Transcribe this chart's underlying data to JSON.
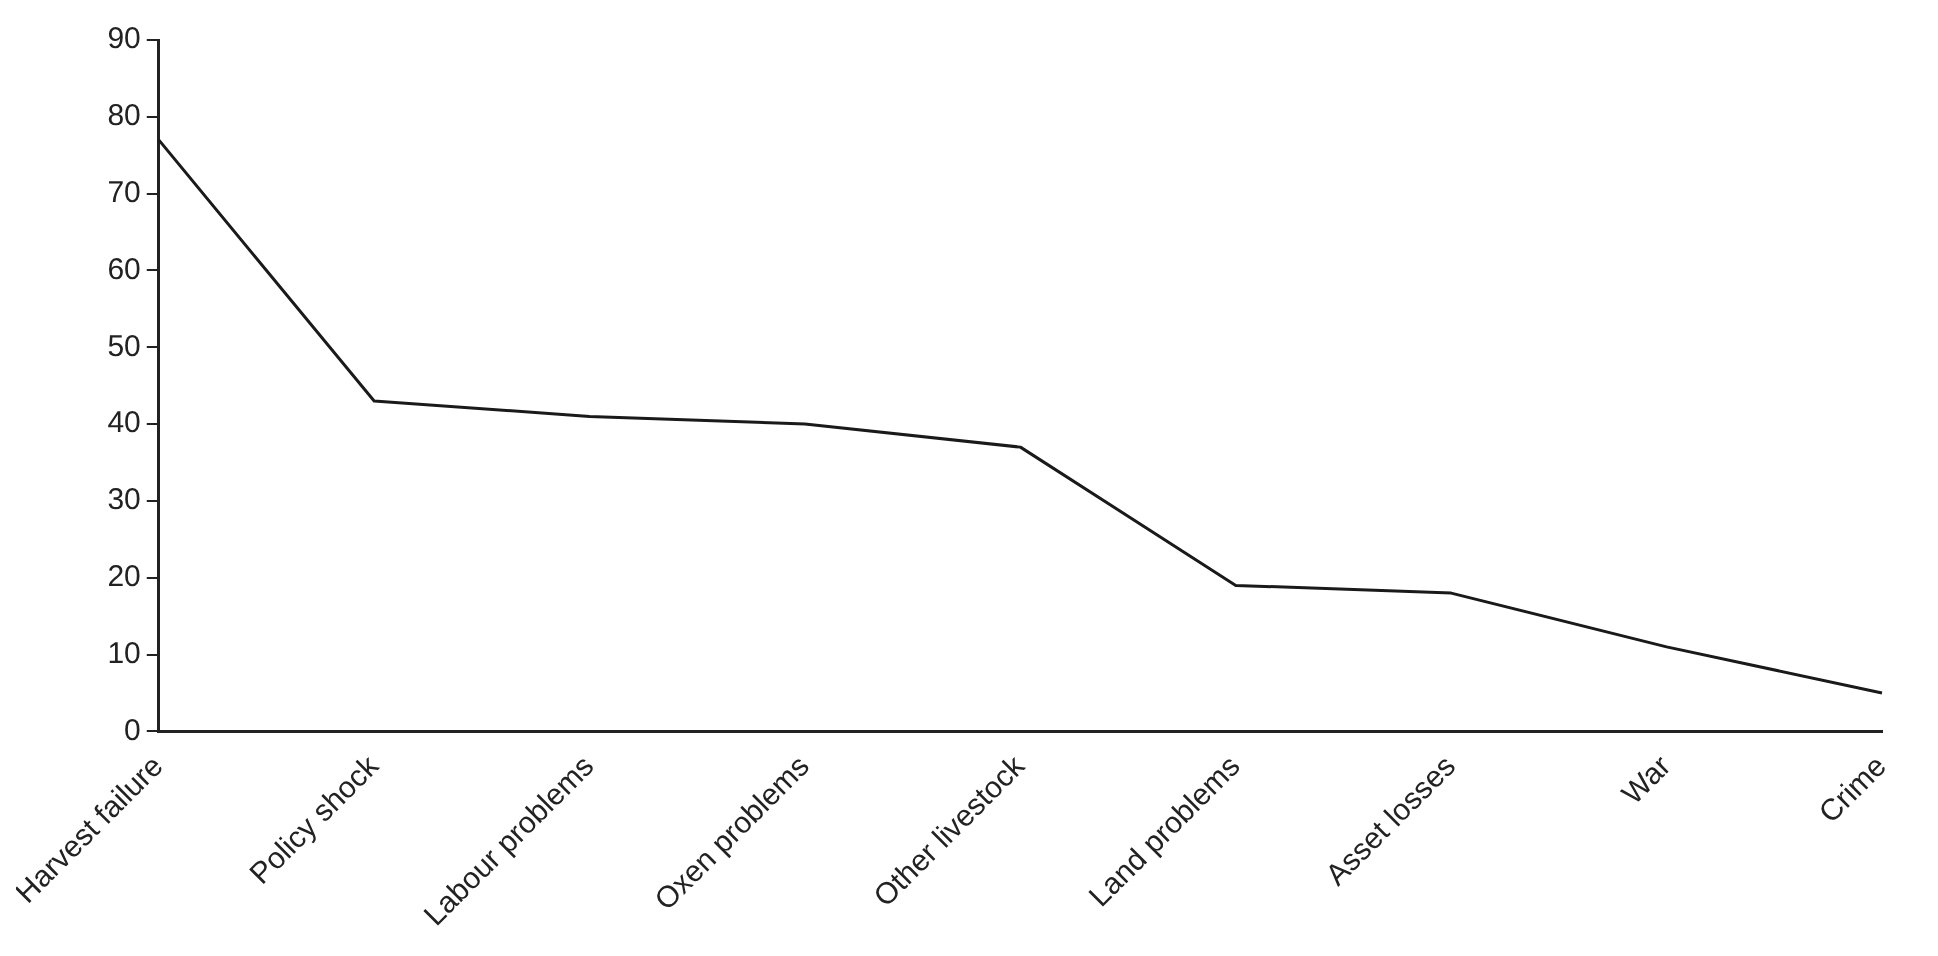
{
  "chart_data": {
    "type": "line",
    "categories": [
      "Harvest failure",
      "Policy shock",
      "Labour problems",
      "Oxen problems",
      "Other livestock",
      "Land problems",
      "Asset losses",
      "War",
      "Crime"
    ],
    "series": [
      {
        "color": "#1a1a1a",
        "values": [
          77,
          43,
          41,
          40,
          37,
          19,
          18,
          11,
          5
        ]
      }
    ],
    "ylim": [
      0,
      90
    ],
    "yticks": [
      0,
      10,
      20,
      30,
      40,
      50,
      60,
      70,
      80,
      90
    ],
    "grid": false,
    "legend": false,
    "marker": "none",
    "line_style": "solid"
  }
}
